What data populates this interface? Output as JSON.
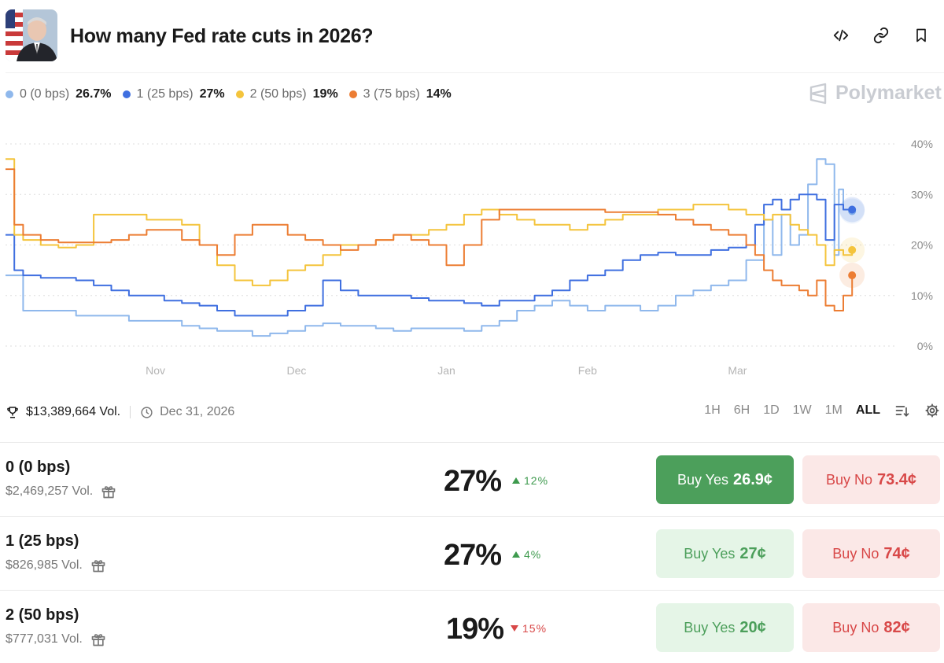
{
  "header": {
    "title": "How many Fed rate cuts in 2026?"
  },
  "legend": [
    {
      "label": "0 (0 bps)",
      "value": "26.7%",
      "color": "#8fb8ec"
    },
    {
      "label": "1 (25 bps)",
      "value": "27%",
      "color": "#3f6fe0"
    },
    {
      "label": "2 (50 bps)",
      "value": "19%",
      "color": "#f4c43c"
    },
    {
      "label": "3 (75 bps)",
      "value": "14%",
      "color": "#ec7d33"
    }
  ],
  "brand": "Polymarket",
  "chart_data": {
    "type": "line",
    "x_ticks": [
      "Nov",
      "Dec",
      "Jan",
      "Feb",
      "Mar"
    ],
    "y_ticks": [
      "40%",
      "30%",
      "20%",
      "10%",
      "0%"
    ],
    "ylim": [
      0,
      40
    ],
    "x_domain": [
      0,
      100
    ],
    "x_tick_positions": [
      17,
      33,
      50,
      66,
      83
    ],
    "series": [
      {
        "name": "0 (0 bps)",
        "color": "#8fb8ec",
        "x": [
          0,
          2,
          4,
          6,
          8,
          10,
          12,
          14,
          16,
          18,
          20,
          22,
          24,
          26,
          28,
          30,
          32,
          34,
          36,
          38,
          40,
          42,
          44,
          46,
          48,
          50,
          52,
          54,
          56,
          58,
          60,
          62,
          64,
          66,
          68,
          70,
          72,
          74,
          76,
          78,
          80,
          82,
          84,
          86,
          87,
          88,
          89,
          90,
          91,
          92,
          93,
          94,
          94.5,
          95,
          96
        ],
        "values": [
          14,
          7,
          7,
          7,
          6,
          6,
          6,
          5,
          5,
          5,
          4,
          3.5,
          3,
          3,
          2,
          2.5,
          3,
          4,
          4.5,
          4,
          4,
          3.5,
          3,
          3.5,
          3.5,
          3.5,
          3,
          4,
          5,
          7,
          8,
          9,
          8,
          7,
          8,
          8,
          7,
          8,
          10,
          11,
          12,
          13,
          17,
          25,
          18,
          26,
          20,
          22,
          32,
          37,
          36,
          18,
          31,
          27,
          26.7
        ]
      },
      {
        "name": "1 (25 bps)",
        "color": "#3f6fe0",
        "x": [
          0,
          1,
          2,
          4,
          6,
          8,
          10,
          12,
          14,
          16,
          18,
          20,
          22,
          24,
          26,
          28,
          30,
          32,
          34,
          36,
          38,
          40,
          42,
          44,
          46,
          48,
          50,
          52,
          54,
          56,
          58,
          60,
          62,
          64,
          66,
          68,
          70,
          72,
          74,
          76,
          78,
          80,
          82,
          84,
          85,
          86,
          87,
          88,
          89,
          90,
          91,
          92,
          93,
          94,
          95,
          96
        ],
        "values": [
          22,
          15,
          14,
          13.5,
          13.5,
          13,
          12,
          11,
          10,
          10,
          9,
          8.5,
          8,
          7,
          6,
          6,
          6,
          7,
          8,
          13,
          11,
          10,
          10,
          10,
          9.5,
          9,
          9,
          8.5,
          8,
          9,
          9,
          10,
          11,
          13,
          14,
          15,
          17,
          18,
          18.5,
          18,
          18,
          19,
          19.5,
          20,
          24,
          28,
          29,
          27,
          29,
          30,
          30,
          29,
          21,
          28,
          27,
          27
        ]
      },
      {
        "name": "2 (50 bps)",
        "color": "#f4c43c",
        "x": [
          0,
          1,
          2,
          4,
          6,
          8,
          10,
          12,
          14,
          16,
          18,
          20,
          22,
          24,
          26,
          28,
          30,
          32,
          34,
          36,
          38,
          40,
          42,
          44,
          46,
          48,
          50,
          52,
          54,
          56,
          58,
          60,
          62,
          64,
          66,
          68,
          70,
          72,
          74,
          76,
          78,
          80,
          82,
          84,
          85,
          86,
          87,
          88,
          89,
          90,
          91,
          92,
          93,
          94,
          95,
          96
        ],
        "values": [
          37,
          22,
          21,
          20,
          19.5,
          20,
          26,
          26,
          26,
          25,
          25,
          24,
          20,
          16,
          13,
          12,
          13,
          15,
          16,
          18,
          20,
          20,
          21,
          22,
          22,
          23,
          24,
          26,
          27,
          26,
          25,
          24,
          24,
          23,
          24,
          25,
          26,
          26,
          27,
          27,
          28,
          28,
          27,
          26,
          26,
          25,
          26,
          26,
          24,
          23,
          22,
          20,
          16,
          19,
          18,
          19
        ]
      },
      {
        "name": "3 (75 bps)",
        "color": "#ec7d33",
        "x": [
          0,
          1,
          2,
          4,
          6,
          8,
          10,
          12,
          14,
          16,
          18,
          20,
          22,
          24,
          26,
          28,
          30,
          32,
          34,
          36,
          38,
          40,
          42,
          44,
          46,
          48,
          50,
          52,
          54,
          56,
          58,
          60,
          62,
          64,
          66,
          68,
          70,
          72,
          74,
          76,
          78,
          80,
          82,
          84,
          85,
          86,
          87,
          88,
          89,
          90,
          91,
          92,
          93,
          94,
          95,
          96
        ],
        "values": [
          35,
          24,
          22,
          21,
          20.5,
          20.5,
          20.5,
          21,
          22,
          23,
          23,
          21,
          20,
          18,
          22,
          24,
          24,
          22,
          21,
          20,
          19,
          20,
          21,
          22,
          21,
          20,
          16,
          20,
          25,
          27,
          27,
          27,
          27,
          27,
          27,
          26.5,
          26.5,
          26.5,
          26,
          25,
          24,
          23,
          22,
          20,
          18,
          15,
          13,
          12,
          12,
          11,
          10,
          13,
          8,
          7,
          10,
          14
        ]
      }
    ]
  },
  "stats": {
    "volume": "$13,389,664 Vol.",
    "end_date": "Dec 31, 2026",
    "ranges": [
      "1H",
      "6H",
      "1D",
      "1W",
      "1M",
      "ALL"
    ],
    "active_range": "ALL"
  },
  "outcomes": [
    {
      "name": "0 (0 bps)",
      "volume": "$2,469,257 Vol.",
      "pct": "27%",
      "change": "12%",
      "direction": "up",
      "yes_label": "Buy Yes",
      "yes_price": "26.9¢",
      "no_label": "Buy No",
      "no_price": "73.4¢",
      "yes_style": "solid"
    },
    {
      "name": "1 (25 bps)",
      "volume": "$826,985 Vol.",
      "pct": "27%",
      "change": "4%",
      "direction": "up",
      "yes_label": "Buy Yes",
      "yes_price": "27¢",
      "no_label": "Buy No",
      "no_price": "74¢",
      "yes_style": "soft"
    },
    {
      "name": "2 (50 bps)",
      "volume": "$777,031 Vol.",
      "pct": "19%",
      "change": "15%",
      "direction": "down",
      "yes_label": "Buy Yes",
      "yes_price": "20¢",
      "no_label": "Buy No",
      "no_price": "82¢",
      "yes_style": "soft"
    }
  ]
}
